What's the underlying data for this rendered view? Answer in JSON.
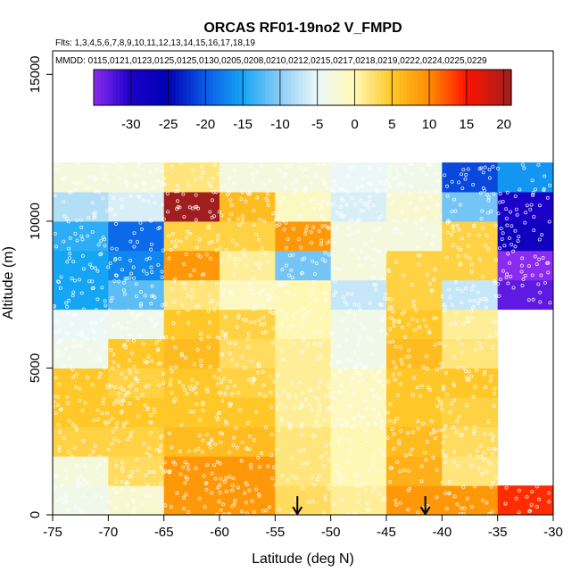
{
  "chart_data": {
    "type": "heatmap",
    "title": "ORCAS RF01-19no2 V_FMPD",
    "flights_text": "Flts: 1,3,4,5,6,7,8,9,10,11,12,13,14,15,16,17,18,19",
    "mmdd_text": "MMDD: 0115,0121,0123,0125,0125,0130,0205,0208,0210,0212,0215,0217,0218,0219,0222,0224,0225,0229",
    "xlabel": "Latitude (deg N)",
    "ylabel": "Altitude (m)",
    "xlim": [
      -75,
      -30
    ],
    "ylim": [
      0,
      15800
    ],
    "x_ticks": [
      -75,
      -70,
      -65,
      -60,
      -55,
      -50,
      -45,
      -40,
      -35,
      -30
    ],
    "x_tick_labels": [
      "-75",
      "-70",
      "-65",
      "-60",
      "-55",
      "-50",
      "-45",
      "-40",
      "-35",
      "-30"
    ],
    "y_ticks": [
      0,
      5000,
      10000,
      15000
    ],
    "y_tick_labels": [
      "0",
      "5000",
      "10000",
      "15000"
    ],
    "x_bins": [
      -75,
      -70,
      -65,
      -60,
      -55,
      -50,
      -45,
      -40,
      -35
    ],
    "bin_width": 5,
    "y_bins": [
      0,
      1000,
      2000,
      3000,
      4000,
      5000,
      6000,
      7000,
      8000,
      9000,
      10000,
      11000
    ],
    "bin_height": 1000,
    "values": [
      [
        -4,
        -2,
        9,
        9,
        3,
        1,
        9,
        9,
        14
      ],
      [
        -3,
        3,
        9,
        9,
        2,
        0,
        7,
        2,
        null
      ],
      [
        4,
        4,
        6,
        6,
        2,
        0,
        6,
        3,
        null
      ],
      [
        5,
        5,
        5,
        5,
        1,
        -1,
        5,
        4,
        null
      ],
      [
        5,
        4,
        5,
        4,
        1,
        -1,
        5,
        5,
        null
      ],
      [
        -4,
        5,
        6,
        3,
        1,
        -4,
        6,
        2,
        null
      ],
      [
        -5,
        -4,
        5,
        4,
        0,
        -4,
        5,
        1,
        null
      ],
      [
        -15,
        -12,
        2,
        -1,
        0,
        -7,
        4,
        -7,
        -33
      ],
      [
        -15,
        -17,
        9,
        1,
        -11,
        -3,
        4,
        4,
        -35
      ],
      [
        -14,
        -19,
        4,
        4,
        9,
        -3,
        -3,
        4,
        -28
      ],
      [
        -8,
        -6,
        21,
        6,
        -1,
        -6,
        -2,
        -11,
        -30
      ],
      [
        -3,
        -3,
        2,
        -3,
        -3,
        -5,
        -4,
        -21,
        -16
      ]
    ],
    "colorbar": {
      "min": -35,
      "max": 21,
      "ticks": [
        -30,
        -25,
        -20,
        -15,
        -10,
        -5,
        0,
        5,
        10,
        15,
        20
      ],
      "tick_labels": [
        "-30",
        "-25",
        "-20",
        "-15",
        "-10",
        "-5",
        "0",
        "5",
        "10",
        "15",
        "20"
      ],
      "stops": [
        {
          "v": -35,
          "color": "#8c2bf0"
        },
        {
          "v": -30,
          "color": "#1a00c8"
        },
        {
          "v": -25,
          "color": "#0000b4"
        },
        {
          "v": -20,
          "color": "#0a5ae6"
        },
        {
          "v": -15,
          "color": "#14a5f5"
        },
        {
          "v": -10,
          "color": "#8ccdf5"
        },
        {
          "v": -5,
          "color": "#ecf8f8"
        },
        {
          "v": 0,
          "color": "#fff8b4"
        },
        {
          "v": 5,
          "color": "#ffc828"
        },
        {
          "v": 10,
          "color": "#ff8c00"
        },
        {
          "v": 15,
          "color": "#ff1400"
        },
        {
          "v": 21,
          "color": "#a01e1e"
        }
      ]
    },
    "arrows_lat": [
      -53,
      -41.5
    ]
  }
}
